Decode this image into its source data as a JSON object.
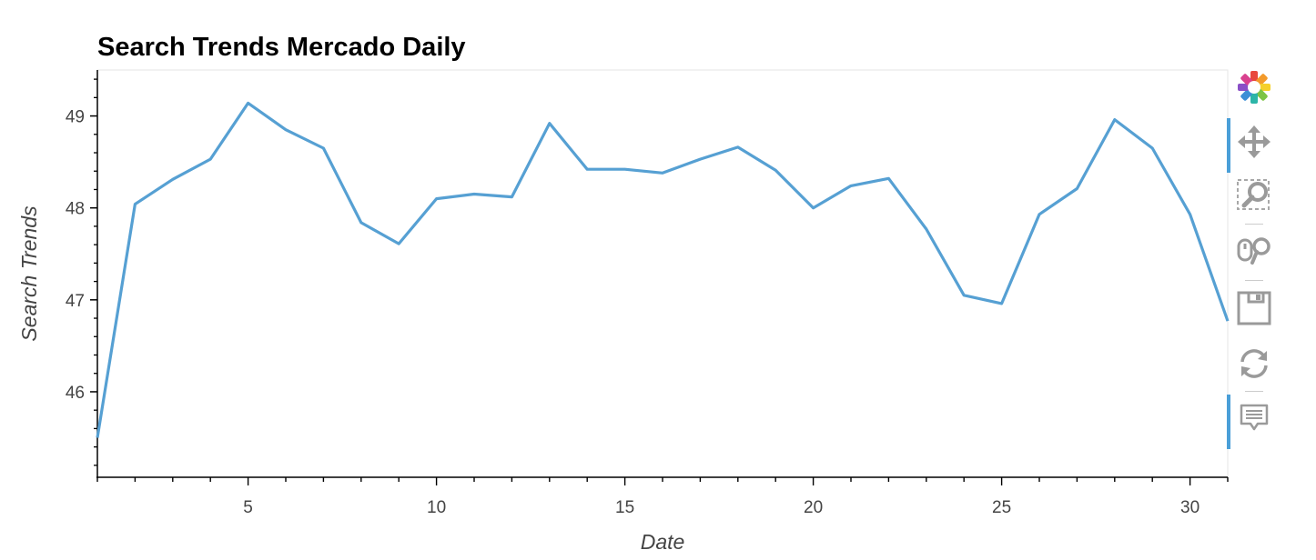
{
  "chart_data": {
    "type": "line",
    "title": "Search Trends Mercado Daily",
    "xlabel": "Date",
    "ylabel": "Search Trends",
    "x": [
      1,
      2,
      3,
      4,
      5,
      6,
      7,
      8,
      9,
      10,
      11,
      12,
      13,
      14,
      15,
      16,
      17,
      18,
      19,
      20,
      21,
      22,
      23,
      24,
      25,
      26,
      27,
      28,
      29,
      30,
      31
    ],
    "series": [
      {
        "values": [
          45.5,
          48.04,
          48.31,
          48.53,
          49.14,
          48.85,
          48.65,
          47.84,
          47.61,
          48.1,
          48.15,
          48.12,
          48.92,
          48.42,
          48.42,
          48.38,
          48.53,
          48.66,
          48.41,
          48.0,
          48.24,
          48.32,
          47.77,
          47.05,
          46.96,
          47.93,
          48.21,
          48.96,
          48.65,
          47.93,
          46.77
        ]
      }
    ],
    "xlim": [
      1,
      31
    ],
    "ylim": [
      45.07,
      49.5
    ],
    "x_ticks": [
      5,
      10,
      15,
      20,
      25,
      30
    ],
    "y_ticks": [
      46,
      47,
      48,
      49
    ],
    "grid": false,
    "line_color": "#56a0d3"
  },
  "toolbar": {
    "tools": [
      {
        "name": "bokeh-logo-icon",
        "active": false,
        "clickable": true
      },
      {
        "name": "pan-icon",
        "active": true,
        "clickable": true
      },
      {
        "name": "box-zoom-icon",
        "active": false,
        "clickable": true
      },
      {
        "name": "wheel-zoom-icon",
        "active": false,
        "clickable": true
      },
      {
        "name": "save-icon",
        "active": false,
        "clickable": true
      },
      {
        "name": "reset-icon",
        "active": false,
        "clickable": true
      },
      {
        "name": "hover-icon",
        "active": true,
        "clickable": true
      }
    ]
  }
}
